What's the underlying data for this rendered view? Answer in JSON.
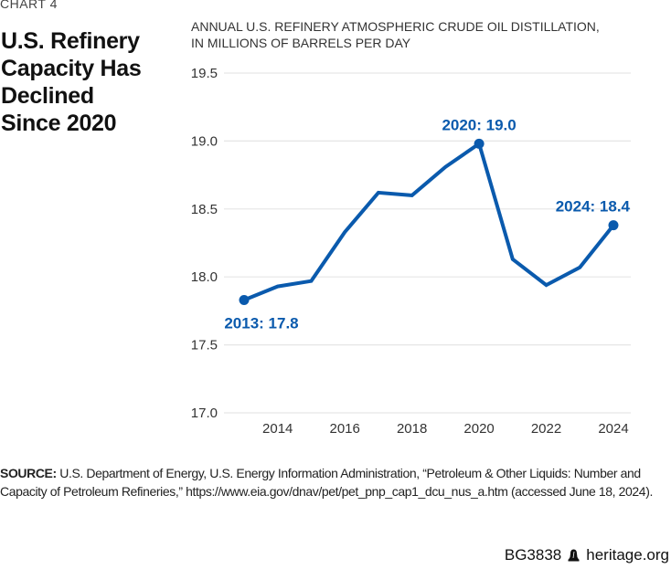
{
  "chart_number": "CHART 4",
  "title_lines": [
    "U.S. Refinery",
    "Capacity Has",
    "Declined",
    "Since 2020"
  ],
  "subtitle_lines": [
    "ANNUAL U.S. REFINERY ATMOSPHERIC CRUDE OIL DISTILLATION,",
    "IN MILLIONS OF BARRELS PER DAY"
  ],
  "source": {
    "label": "SOURCE:",
    "text": " U.S. Department of Energy, U.S. Energy Information Administration, “Petroleum & Other Liquids: Number and Capacity of Petroleum Refineries,” https://www.eia.gov/dnav/pet/pet_pnp_cap1_dcu_nus_a.htm (accessed June 18, 2024)."
  },
  "footer": {
    "code": "BG3838",
    "icon": "liberty-bell-icon",
    "site": "heritage.org"
  },
  "colors": {
    "line": "#0a5aad",
    "label": "#0a5aad",
    "grid": "#e6e6e6",
    "axis_text": "#333333"
  },
  "chart_data": {
    "type": "line",
    "title": "U.S. Refinery Capacity Has Declined Since 2020",
    "subtitle": "Annual U.S. refinery atmospheric crude oil distillation, in millions of barrels per day",
    "xlabel": "",
    "ylabel": "Millions of barrels per day",
    "x": [
      2013,
      2014,
      2015,
      2016,
      2017,
      2018,
      2019,
      2020,
      2021,
      2022,
      2023,
      2024
    ],
    "series": [
      {
        "name": "Atmospheric crude oil distillation capacity",
        "values": [
          17.83,
          17.93,
          17.97,
          18.33,
          18.62,
          18.6,
          18.81,
          18.98,
          18.13,
          17.94,
          18.07,
          18.38
        ]
      }
    ],
    "ylim": [
      17.0,
      19.5
    ],
    "xlim": [
      2013,
      2024
    ],
    "yticks": [
      17.0,
      17.5,
      18.0,
      18.5,
      19.0,
      19.5
    ],
    "ytick_labels": [
      "17.0",
      "17.5",
      "18.0",
      "18.5",
      "19.0",
      "19.5"
    ],
    "xticks": [
      2014,
      2016,
      2018,
      2020,
      2022,
      2024
    ],
    "xtick_labels": [
      "2014",
      "2016",
      "2018",
      "2020",
      "2022",
      "2024"
    ],
    "grid": true,
    "legend": "none",
    "annotations": [
      {
        "x": 2013,
        "text": "2013: 17.8",
        "position": "below"
      },
      {
        "x": 2020,
        "text": "2020: 19.0",
        "position": "above"
      },
      {
        "x": 2024,
        "text": "2024: 18.4",
        "position": "above"
      }
    ]
  }
}
